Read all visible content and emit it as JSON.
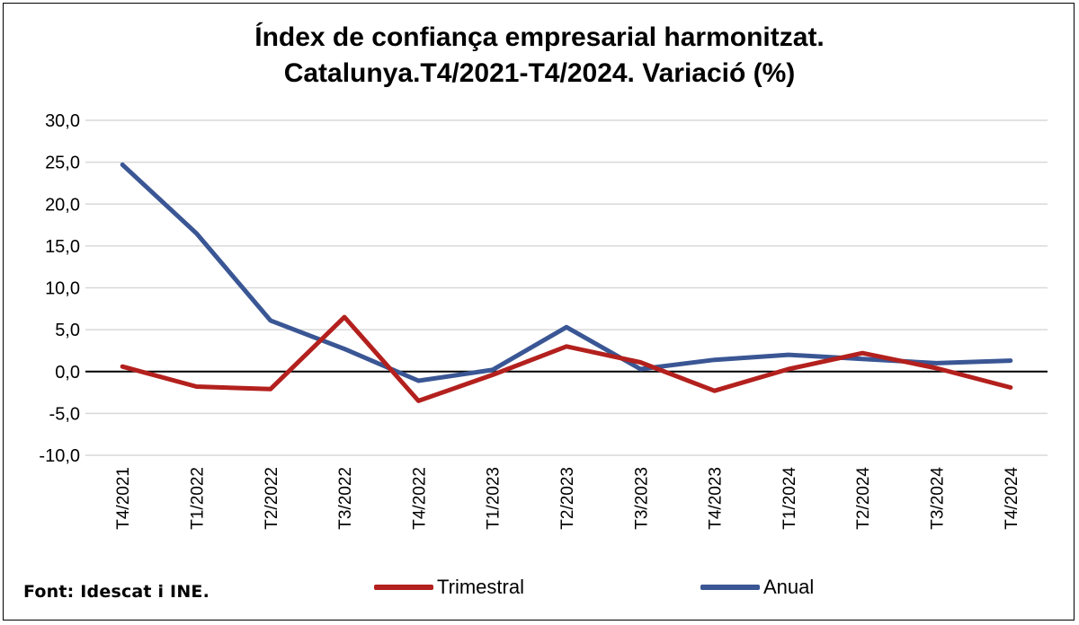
{
  "chart_data": {
    "type": "line",
    "title": [
      "Índex de confiança empresarial harmonitzat.",
      "Catalunya.T4/2021-T4/2024. Variació (%)"
    ],
    "categories": [
      "T4/2021",
      "T1/2022",
      "T2/2022",
      "T3/2022",
      "T4/2022",
      "T1/2023",
      "T2/2023",
      "T3/2023",
      "T4/2023",
      "T1/2024",
      "T2/2024",
      "T3/2024",
      "T4/2024"
    ],
    "ylim": [
      -10,
      30
    ],
    "yticks": [
      30,
      25,
      20,
      15,
      10,
      5,
      0,
      -5,
      -10
    ],
    "ytick_labels": [
      "30,0",
      "25,0",
      "20,0",
      "15,0",
      "10,0",
      "5,0",
      "0,0",
      "-5,0",
      "-10,0"
    ],
    "grid": true,
    "legend_position": "bottom",
    "series": [
      {
        "name": "Trimestral",
        "color": "#b3201d",
        "values": [
          0.6,
          -1.8,
          -2.1,
          6.5,
          -3.5,
          -0.4,
          3.0,
          1.1,
          -2.3,
          0.3,
          2.2,
          0.4,
          -1.9
        ]
      },
      {
        "name": "Anual",
        "color": "#3a5694",
        "values": [
          24.7,
          16.5,
          6.1,
          2.7,
          -1.1,
          0.2,
          5.3,
          0.3,
          1.4,
          2.0,
          1.5,
          1.0,
          1.3
        ]
      }
    ]
  },
  "source": "Font: Idescat i INE."
}
